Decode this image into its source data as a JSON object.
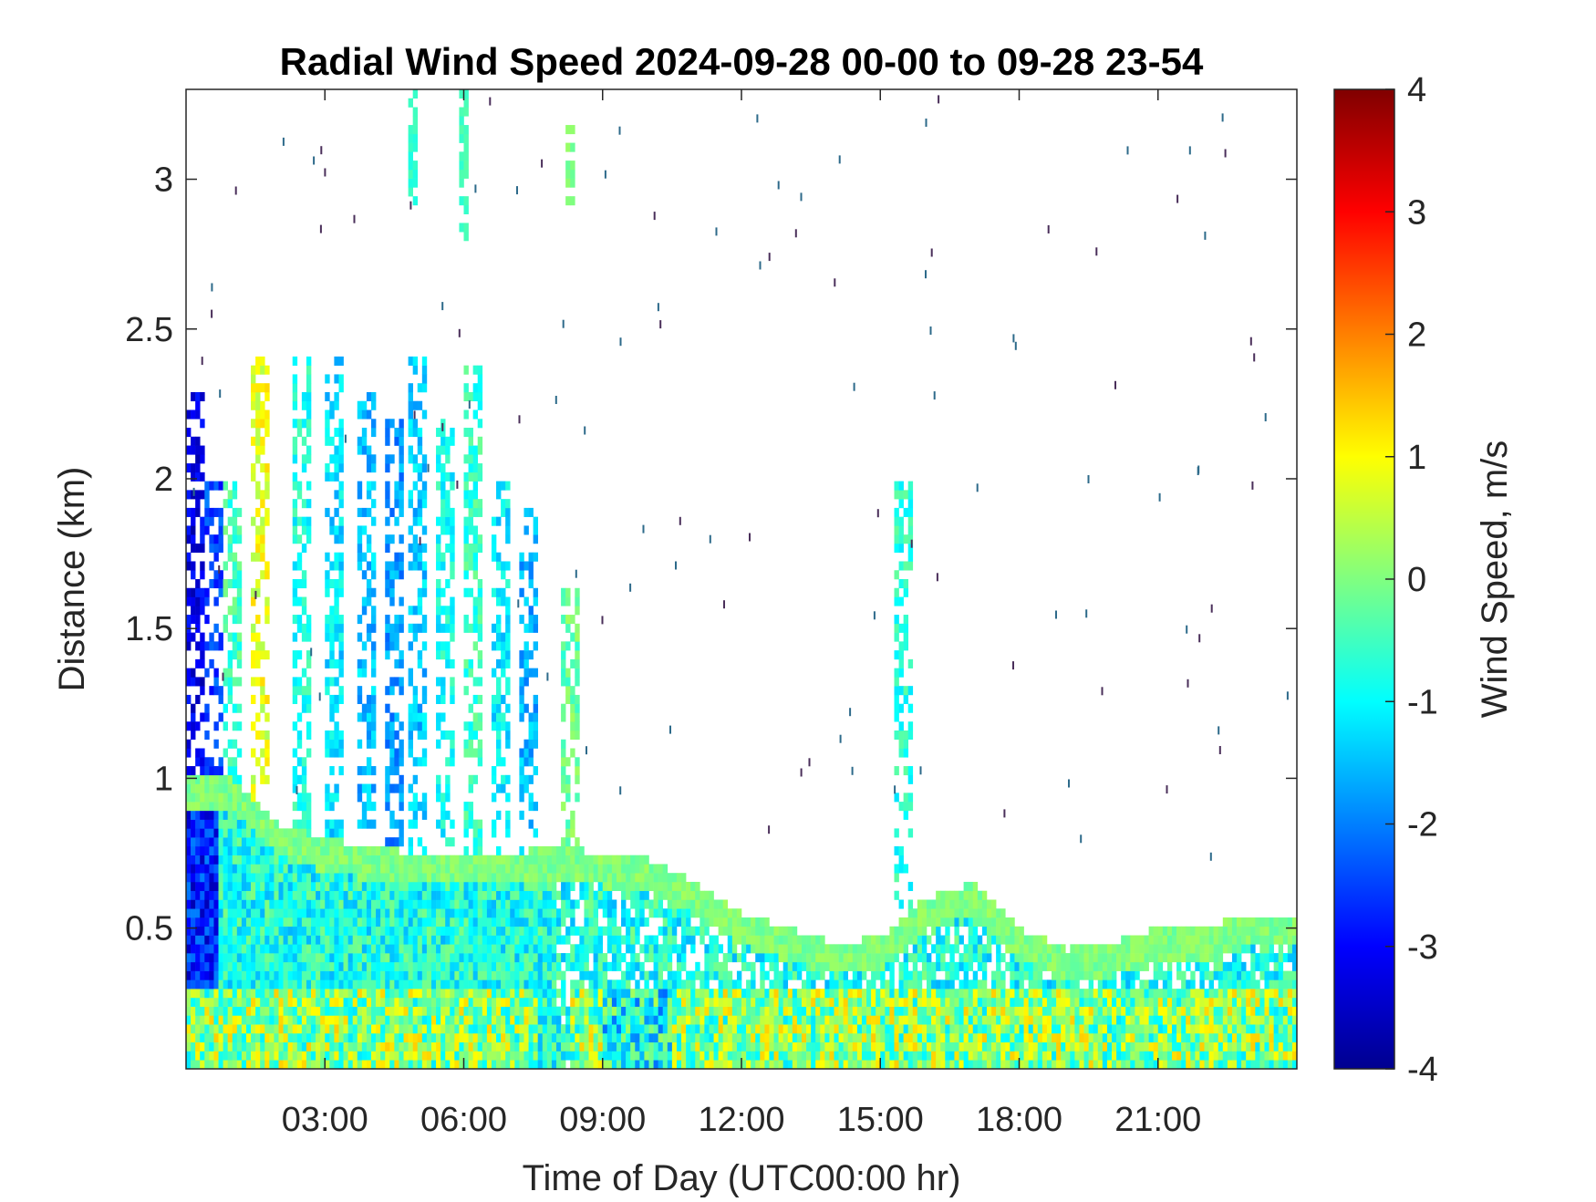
{
  "chart_data": {
    "type": "heatmap",
    "title": "Radial Wind Speed 2024-09-28 00-00 to 09-28 23-54",
    "xlabel": "Time of Day (UTC00:00 hr)",
    "ylabel": "Distance (km)",
    "colorbar_label": "Wind Speed, m/s",
    "colormap": "jet",
    "xlim": [
      0,
      24
    ],
    "ylim": [
      0.03,
      3.3
    ],
    "clim": [
      -4,
      4
    ],
    "x_ticks": [
      {
        "value": 3,
        "label": "03:00"
      },
      {
        "value": 6,
        "label": "06:00"
      },
      {
        "value": 9,
        "label": "09:00"
      },
      {
        "value": 12,
        "label": "12:00"
      },
      {
        "value": 15,
        "label": "15:00"
      },
      {
        "value": 18,
        "label": "18:00"
      },
      {
        "value": 21,
        "label": "21:00"
      }
    ],
    "y_ticks": [
      {
        "value": 0.5,
        "label": "0.5"
      },
      {
        "value": 1,
        "label": "1"
      },
      {
        "value": 1.5,
        "label": "1.5"
      },
      {
        "value": 2,
        "label": "2"
      },
      {
        "value": 2.5,
        "label": "2.5"
      },
      {
        "value": 3,
        "label": "3"
      }
    ],
    "colorbar_ticks": [
      {
        "value": 4,
        "label": "4"
      },
      {
        "value": 3,
        "label": "3"
      },
      {
        "value": 2,
        "label": "2"
      },
      {
        "value": 1,
        "label": "1"
      },
      {
        "value": 0,
        "label": "0"
      },
      {
        "value": -1,
        "label": "-1"
      },
      {
        "value": -2,
        "label": "-2"
      },
      {
        "value": -3,
        "label": "-3"
      },
      {
        "value": -4,
        "label": "-4"
      }
    ],
    "boundary_layer": [
      {
        "t": 0.0,
        "top": 0.95
      },
      {
        "t": 1.0,
        "top": 0.95
      },
      {
        "t": 2.0,
        "top": 0.8
      },
      {
        "t": 3.0,
        "top": 0.75
      },
      {
        "t": 4.0,
        "top": 0.72
      },
      {
        "t": 5.0,
        "top": 0.7
      },
      {
        "t": 6.0,
        "top": 0.7
      },
      {
        "t": 7.0,
        "top": 0.7
      },
      {
        "t": 8.0,
        "top": 0.72
      },
      {
        "t": 9.0,
        "top": 0.7
      },
      {
        "t": 10.0,
        "top": 0.68
      },
      {
        "t": 11.0,
        "top": 0.6
      },
      {
        "t": 12.0,
        "top": 0.5
      },
      {
        "t": 13.0,
        "top": 0.45
      },
      {
        "t": 14.0,
        "top": 0.4
      },
      {
        "t": 15.0,
        "top": 0.42
      },
      {
        "t": 16.0,
        "top": 0.55
      },
      {
        "t": 17.0,
        "top": 0.6
      },
      {
        "t": 18.0,
        "top": 0.45
      },
      {
        "t": 19.0,
        "top": 0.38
      },
      {
        "t": 20.0,
        "top": 0.4
      },
      {
        "t": 21.0,
        "top": 0.45
      },
      {
        "t": 22.0,
        "top": 0.45
      },
      {
        "t": 23.0,
        "top": 0.5
      },
      {
        "t": 24.0,
        "top": 0.5
      }
    ],
    "vertical_plumes": [
      {
        "t": 0.2,
        "top": 2.3,
        "speed": -3.2
      },
      {
        "t": 0.6,
        "top": 2.0,
        "speed": -2.5
      },
      {
        "t": 1.0,
        "top": 2.0,
        "speed": -0.5
      },
      {
        "t": 1.6,
        "top": 2.4,
        "speed": 0.8
      },
      {
        "t": 2.5,
        "top": 2.4,
        "speed": -0.8
      },
      {
        "t": 3.2,
        "top": 2.4,
        "speed": -1.2
      },
      {
        "t": 3.9,
        "top": 2.3,
        "speed": -1.5
      },
      {
        "t": 4.5,
        "top": 2.2,
        "speed": -1.8
      },
      {
        "t": 5.0,
        "top": 2.4,
        "speed": -1.4
      },
      {
        "t": 5.6,
        "top": 2.2,
        "speed": -0.9
      },
      {
        "t": 6.2,
        "top": 2.4,
        "speed": -0.6
      },
      {
        "t": 6.8,
        "top": 2.0,
        "speed": -1.1
      },
      {
        "t": 7.4,
        "top": 1.9,
        "speed": -1.6
      },
      {
        "t": 8.3,
        "top": 1.65,
        "speed": -0.2
      },
      {
        "t": 15.5,
        "top": 2.0,
        "speed": -0.7
      }
    ],
    "upper_patches": [
      {
        "t": 4.9,
        "y0": 2.9,
        "y1": 3.3,
        "speed": -0.6
      },
      {
        "t": 6.0,
        "y0": 2.8,
        "y1": 3.3,
        "speed": -0.5
      },
      {
        "t": 8.3,
        "y0": 2.9,
        "y1": 3.2,
        "speed": 0.0
      }
    ]
  }
}
